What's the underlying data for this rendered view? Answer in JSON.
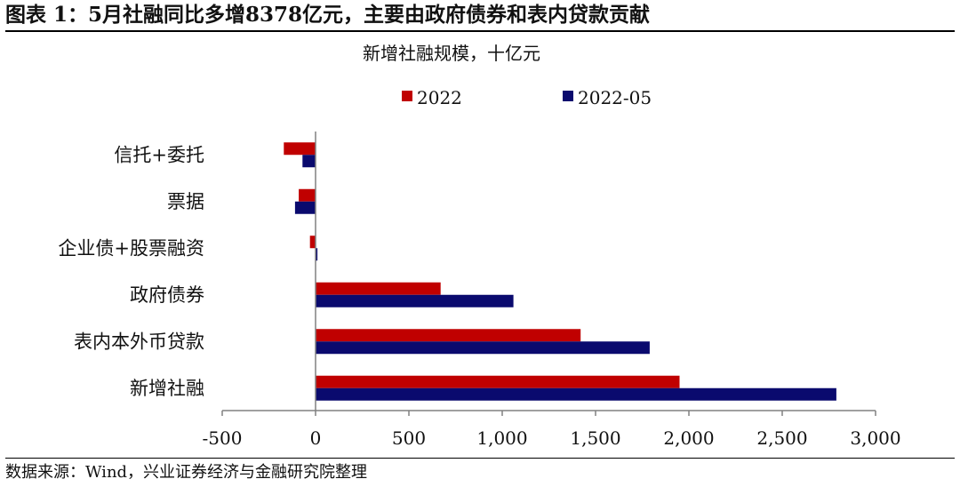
{
  "figure_title": "图表 1：5月社融同比多增8378亿元，主要由政府债券和表内贷款贡献",
  "source": "数据来源：Wind，兴业证券经济与金融研究院整理",
  "colors": {
    "series_2022": "#c00000",
    "series_2022_05": "#0a0a6e",
    "axis": "#808080"
  },
  "chart_data": {
    "type": "bar",
    "orientation": "horizontal",
    "title": "新增社融规模，十亿元",
    "categories": [
      "信托+委托",
      "票据",
      "企业债+股票融资",
      "政府债券",
      "表内本外币贷款",
      "新增社融"
    ],
    "series": [
      {
        "name": "2022",
        "values": [
          -170,
          -90,
          -30,
          670,
          1420,
          1950
        ]
      },
      {
        "name": "2022-05",
        "values": [
          -70,
          -110,
          10,
          1060,
          1790,
          2790
        ]
      }
    ],
    "xlim": [
      -500,
      3000
    ],
    "xticks": [
      -500,
      0,
      500,
      1000,
      1500,
      2000,
      2500,
      3000
    ],
    "xtick_labels": [
      "-500",
      "0",
      "500",
      "1,000",
      "1,500",
      "2,000",
      "2,500",
      "3,000"
    ],
    "legend_position": "top",
    "grid": false
  }
}
